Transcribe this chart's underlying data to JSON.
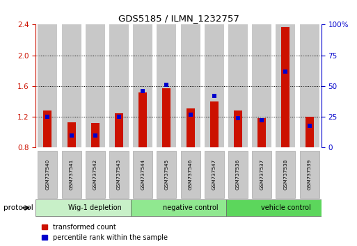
{
  "title": "GDS5185 / ILMN_1232757",
  "samples": [
    "GSM737540",
    "GSM737541",
    "GSM737542",
    "GSM737543",
    "GSM737544",
    "GSM737545",
    "GSM737546",
    "GSM737547",
    "GSM737536",
    "GSM737537",
    "GSM737538",
    "GSM737539"
  ],
  "red_values": [
    1.28,
    1.13,
    1.12,
    1.25,
    1.52,
    1.57,
    1.31,
    1.4,
    1.28,
    1.18,
    2.37,
    1.2
  ],
  "blue_pct": [
    25,
    10,
    10,
    25,
    46,
    51,
    27,
    42,
    24,
    22,
    62,
    18
  ],
  "groups": [
    {
      "label": "Wig-1 depletion",
      "start": 0,
      "end": 4,
      "color": "#c8f0c8"
    },
    {
      "label": "negative control",
      "start": 4,
      "end": 8,
      "color": "#90e890"
    },
    {
      "label": "vehicle control",
      "start": 8,
      "end": 12,
      "color": "#5cd65c"
    }
  ],
  "ylim_left": [
    0.8,
    2.4
  ],
  "yticks_left": [
    0.8,
    1.2,
    1.6,
    2.0,
    2.4
  ],
  "ylim_right": [
    0,
    100
  ],
  "yticks_right": [
    0,
    25,
    50,
    75,
    100
  ],
  "red_color": "#cc1100",
  "blue_color": "#0000cc",
  "bar_bg_color": "#c8c8c8",
  "legend_red": "transformed count",
  "legend_blue": "percentile rank within the sample",
  "hgrid_lines": [
    1.2,
    1.6,
    2.0
  ]
}
